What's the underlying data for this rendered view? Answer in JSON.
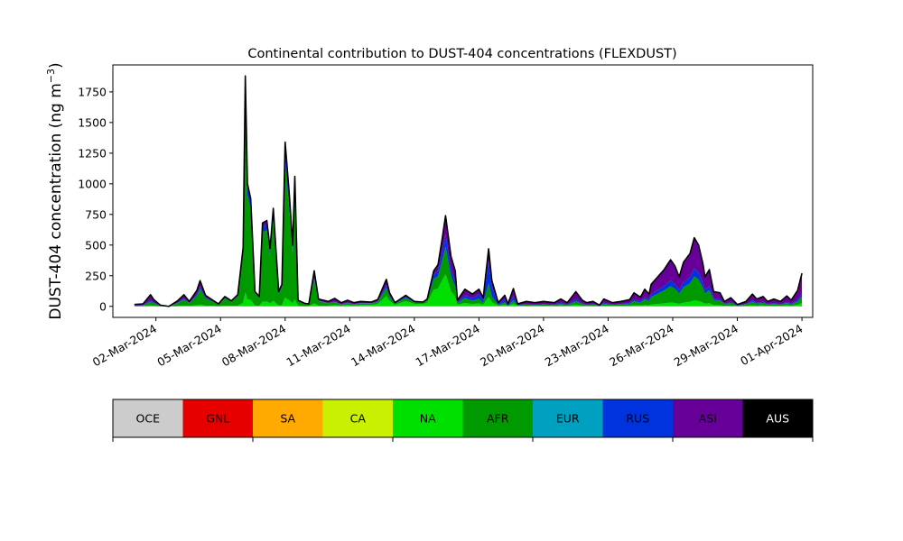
{
  "chart_data": {
    "type": "area",
    "stacked": true,
    "title": "Continental contribution to DUST-404 concentrations (FLEXDUST)",
    "ylabel": "DUST-404 concentration (ng m",
    "ylabel_unit_sup": "−3",
    "ylabel_close": ")",
    "xlabel": "",
    "ylim": [
      -90,
      1970
    ],
    "yticks": [
      0,
      250,
      500,
      750,
      1000,
      1250,
      1500,
      1750
    ],
    "xlim": [
      -1.0,
      31.5
    ],
    "xtick_positions": [
      1,
      4,
      7,
      10,
      13,
      16,
      19,
      22,
      25,
      28,
      31
    ],
    "xtick_labels": [
      "02-Mar-2024",
      "05-Mar-2024",
      "08-Mar-2024",
      "11-Mar-2024",
      "14-Mar-2024",
      "17-Mar-2024",
      "20-Mar-2024",
      "23-Mar-2024",
      "26-Mar-2024",
      "29-Mar-2024",
      "01-Apr-2024"
    ],
    "x_unit": "days after 01-Mar-2024",
    "grid": false,
    "total_line_color": "#000000",
    "legend_placement": "below",
    "total_profile": [
      [
        0.0,
        15
      ],
      [
        0.4,
        20
      ],
      [
        0.75,
        95
      ],
      [
        0.9,
        55
      ],
      [
        1.2,
        10
      ],
      [
        1.6,
        0
      ],
      [
        2.0,
        45
      ],
      [
        2.3,
        95
      ],
      [
        2.55,
        40
      ],
      [
        2.9,
        130
      ],
      [
        3.05,
        210
      ],
      [
        3.3,
        90
      ],
      [
        3.6,
        55
      ],
      [
        3.9,
        20
      ],
      [
        4.2,
        80
      ],
      [
        4.5,
        45
      ],
      [
        4.8,
        95
      ],
      [
        5.05,
        480
      ],
      [
        5.15,
        1880
      ],
      [
        5.25,
        1000
      ],
      [
        5.4,
        880
      ],
      [
        5.6,
        120
      ],
      [
        5.8,
        80
      ],
      [
        5.95,
        680
      ],
      [
        6.15,
        700
      ],
      [
        6.3,
        470
      ],
      [
        6.45,
        800
      ],
      [
        6.7,
        120
      ],
      [
        6.85,
        180
      ],
      [
        7.0,
        1340
      ],
      [
        7.2,
        900
      ],
      [
        7.35,
        500
      ],
      [
        7.45,
        1060
      ],
      [
        7.6,
        50
      ],
      [
        7.9,
        25
      ],
      [
        8.1,
        20
      ],
      [
        8.35,
        290
      ],
      [
        8.55,
        60
      ],
      [
        9.0,
        40
      ],
      [
        9.3,
        65
      ],
      [
        9.6,
        30
      ],
      [
        9.9,
        50
      ],
      [
        10.2,
        30
      ],
      [
        10.5,
        40
      ],
      [
        11.0,
        35
      ],
      [
        11.3,
        55
      ],
      [
        11.7,
        220
      ],
      [
        11.85,
        110
      ],
      [
        12.1,
        30
      ],
      [
        12.6,
        90
      ],
      [
        13.0,
        40
      ],
      [
        13.4,
        35
      ],
      [
        13.6,
        60
      ],
      [
        13.9,
        290
      ],
      [
        14.1,
        340
      ],
      [
        14.3,
        560
      ],
      [
        14.45,
        740
      ],
      [
        14.7,
        410
      ],
      [
        14.9,
        290
      ],
      [
        15.0,
        50
      ],
      [
        15.35,
        140
      ],
      [
        15.7,
        100
      ],
      [
        16.0,
        140
      ],
      [
        16.2,
        70
      ],
      [
        16.45,
        470
      ],
      [
        16.6,
        210
      ],
      [
        16.9,
        30
      ],
      [
        17.2,
        90
      ],
      [
        17.35,
        20
      ],
      [
        17.6,
        145
      ],
      [
        17.8,
        20
      ],
      [
        18.2,
        40
      ],
      [
        18.6,
        30
      ],
      [
        19.0,
        40
      ],
      [
        19.5,
        30
      ],
      [
        19.8,
        60
      ],
      [
        20.1,
        30
      ],
      [
        20.5,
        120
      ],
      [
        20.8,
        50
      ],
      [
        21.0,
        30
      ],
      [
        21.3,
        40
      ],
      [
        21.6,
        10
      ],
      [
        21.8,
        60
      ],
      [
        22.2,
        30
      ],
      [
        22.6,
        40
      ],
      [
        23.0,
        55
      ],
      [
        23.2,
        110
      ],
      [
        23.5,
        75
      ],
      [
        23.7,
        140
      ],
      [
        23.9,
        100
      ],
      [
        24.0,
        180
      ],
      [
        24.3,
        240
      ],
      [
        24.6,
        300
      ],
      [
        24.9,
        380
      ],
      [
        25.1,
        330
      ],
      [
        25.3,
        240
      ],
      [
        25.5,
        360
      ],
      [
        25.8,
        430
      ],
      [
        26.0,
        560
      ],
      [
        26.2,
        500
      ],
      [
        26.4,
        350
      ],
      [
        26.5,
        240
      ],
      [
        26.7,
        300
      ],
      [
        26.9,
        120
      ],
      [
        27.2,
        110
      ],
      [
        27.4,
        40
      ],
      [
        27.7,
        70
      ],
      [
        28.0,
        15
      ],
      [
        28.4,
        40
      ],
      [
        28.7,
        100
      ],
      [
        28.9,
        60
      ],
      [
        29.2,
        80
      ],
      [
        29.4,
        40
      ],
      [
        29.7,
        60
      ],
      [
        30.0,
        40
      ],
      [
        30.3,
        85
      ],
      [
        30.5,
        50
      ],
      [
        30.8,
        130
      ],
      [
        31.0,
        270
      ]
    ],
    "series": [
      {
        "name": "OCE",
        "color": "#cccccc",
        "fraction": 0.0
      },
      {
        "name": "GNL",
        "color": "#e60000",
        "fraction": 0.0
      },
      {
        "name": "SA",
        "color": "#ffaa00",
        "fraction": 0.0
      },
      {
        "name": "CA",
        "color": "#c8f000",
        "fraction": 0.0
      },
      {
        "name": "NA",
        "color": "#00e000",
        "fraction_by_x": [
          [
            0,
            0.08
          ],
          [
            5.0,
            0.06
          ],
          [
            8.0,
            0.05
          ],
          [
            13.5,
            0.55
          ],
          [
            15.2,
            0.2
          ],
          [
            17,
            0.15
          ],
          [
            24,
            0.08
          ],
          [
            31,
            0.1
          ]
        ]
      },
      {
        "name": "AFR",
        "color": "#009900",
        "fraction_by_x": [
          [
            0,
            0.25
          ],
          [
            5.0,
            0.85
          ],
          [
            8.0,
            0.8
          ],
          [
            9.5,
            0.3
          ],
          [
            13.5,
            0.3
          ],
          [
            15.2,
            0.3
          ],
          [
            17,
            0.2
          ],
          [
            22,
            0.25
          ],
          [
            24,
            0.35
          ],
          [
            27,
            0.35
          ],
          [
            31,
            0.2
          ]
        ]
      },
      {
        "name": "EUR",
        "color": "#00a0c0",
        "fraction": 0.0
      },
      {
        "name": "RUS",
        "color": "#0033dd",
        "fraction_by_x": [
          [
            0,
            0.12
          ],
          [
            8,
            0.05
          ],
          [
            15.5,
            0.15
          ],
          [
            16.5,
            0.4
          ],
          [
            18,
            0.15
          ],
          [
            31,
            0.1
          ]
        ]
      },
      {
        "name": "ASI",
        "color": "#660099",
        "fraction": "remainder"
      },
      {
        "name": "AUS",
        "color": "#000000",
        "fraction": 0.0
      }
    ],
    "legend": [
      {
        "name": "OCE",
        "color": "#cccccc",
        "text_color": "#000000"
      },
      {
        "name": "GNL",
        "color": "#e60000",
        "text_color": "#000000"
      },
      {
        "name": "SA",
        "color": "#ffaa00",
        "text_color": "#000000"
      },
      {
        "name": "CA",
        "color": "#c8f000",
        "text_color": "#000000"
      },
      {
        "name": "NA",
        "color": "#00e000",
        "text_color": "#000000"
      },
      {
        "name": "AFR",
        "color": "#009900",
        "text_color": "#000000"
      },
      {
        "name": "EUR",
        "color": "#00a0c0",
        "text_color": "#000000"
      },
      {
        "name": "RUS",
        "color": "#0033dd",
        "text_color": "#000000"
      },
      {
        "name": "ASI",
        "color": "#660099",
        "text_color": "#000000"
      },
      {
        "name": "AUS",
        "color": "#000000",
        "text_color": "#ffffff"
      }
    ]
  }
}
